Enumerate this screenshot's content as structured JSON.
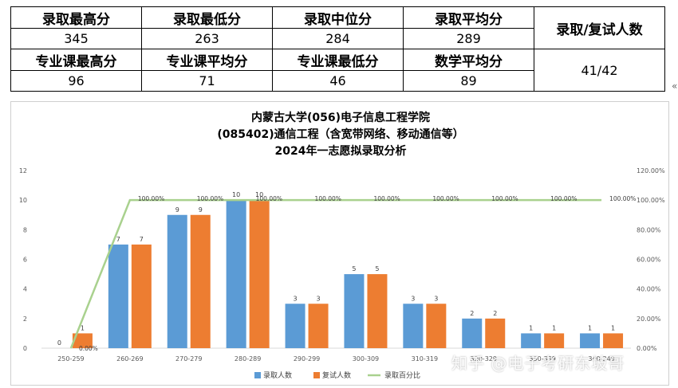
{
  "summary_table": {
    "row1_headers": [
      "录取最高分",
      "录取最低分",
      "录取中位分",
      "录取平均分"
    ],
    "row1_values": [
      "345",
      "263",
      "284",
      "289"
    ],
    "row2_headers": [
      "专业课最高分",
      "专业课平均分",
      "专业课最低分",
      "数学平均分"
    ],
    "row2_values": [
      "96",
      "71",
      "46",
      "89"
    ],
    "ratio_header": "录取/复试人数",
    "ratio_value": "41/42"
  },
  "side_mark": "«",
  "watermark": "知乎 @电子考研东坡哥",
  "chart_data": {
    "type": "bar",
    "title_lines": [
      "内蒙古大学(056)电子信息工程学院",
      "(085402)通信工程（含宽带网络、移动通信等）",
      "2024年一志愿拟录取分析"
    ],
    "categories": [
      "250-259",
      "260-269",
      "270-279",
      "280-289",
      "290-299",
      "300-309",
      "310-319",
      "320-329",
      "330-339",
      "340-349"
    ],
    "series": [
      {
        "name": "录取人数",
        "type": "bar",
        "axis": "left",
        "color": "#5B9BD5",
        "values": [
          0,
          7,
          9,
          10,
          3,
          5,
          3,
          2,
          1,
          1
        ]
      },
      {
        "name": "复试人数",
        "type": "bar",
        "axis": "left",
        "color": "#ED7D31",
        "values": [
          1,
          7,
          9,
          10,
          3,
          5,
          3,
          2,
          1,
          1
        ]
      },
      {
        "name": "录取百分比",
        "type": "line",
        "axis": "right",
        "color": "#A9D18E",
        "values": [
          0.0,
          100.0,
          100.0,
          100.0,
          100.0,
          100.0,
          100.0,
          100.0,
          100.0,
          100.0
        ]
      }
    ],
    "y_left": {
      "min": 0,
      "max": 12,
      "ticks": [
        0,
        2,
        4,
        6,
        8,
        10,
        12
      ]
    },
    "y_right": {
      "min": 0,
      "max": 120,
      "ticks": [
        "0.00%",
        "20.00%",
        "40.00%",
        "60.00%",
        "80.00%",
        "100.00%",
        "120.00%"
      ]
    },
    "line_labels": [
      "0.00%",
      "100.00%",
      "100.00%",
      "100.00%",
      "100.00%",
      "100.00%",
      "100.00%",
      "100.00%",
      "100.00%",
      "100.00%"
    ],
    "legend_position": "bottom",
    "grid": false
  }
}
